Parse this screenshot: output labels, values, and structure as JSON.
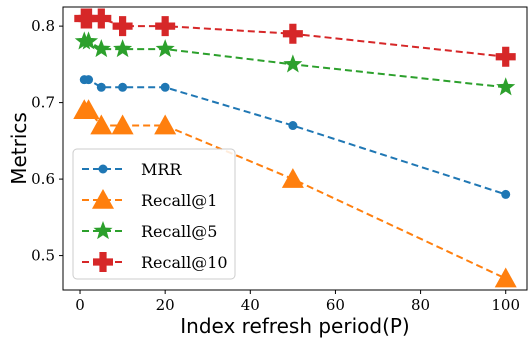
{
  "chart_data": {
    "type": "line",
    "title": "",
    "xlabel": "Index refresh period(P)",
    "ylabel": "Metrics",
    "x": [
      1,
      2,
      5,
      10,
      20,
      50,
      100
    ],
    "xlim": [
      -4,
      105
    ],
    "ylim": [
      0.455,
      0.825
    ],
    "xticks": [
      0,
      20,
      40,
      60,
      80,
      100
    ],
    "yticks": [
      0.5,
      0.6,
      0.7,
      0.8
    ],
    "xtick_labels": [
      "0",
      "20",
      "40",
      "60",
      "80",
      "100"
    ],
    "ytick_labels": [
      "0.5",
      "0.6",
      "0.7",
      "0.8"
    ],
    "grid": false,
    "legend_position": "lower-left",
    "series": [
      {
        "name": "MRR",
        "values": [
          0.73,
          0.73,
          0.72,
          0.72,
          0.72,
          0.67,
          0.58
        ],
        "color": "#1f77b4",
        "marker": "circle"
      },
      {
        "name": "Recall@1",
        "values": [
          0.69,
          0.69,
          0.67,
          0.67,
          0.67,
          0.6,
          0.47
        ],
        "color": "#ff7f0e",
        "marker": "triangle"
      },
      {
        "name": "Recall@5",
        "values": [
          0.78,
          0.78,
          0.77,
          0.77,
          0.77,
          0.75,
          0.72
        ],
        "color": "#2ca02c",
        "marker": "star"
      },
      {
        "name": "Recall@10",
        "values": [
          0.81,
          0.81,
          0.81,
          0.8,
          0.8,
          0.79,
          0.76
        ],
        "color": "#d62728",
        "marker": "plus"
      }
    ]
  }
}
